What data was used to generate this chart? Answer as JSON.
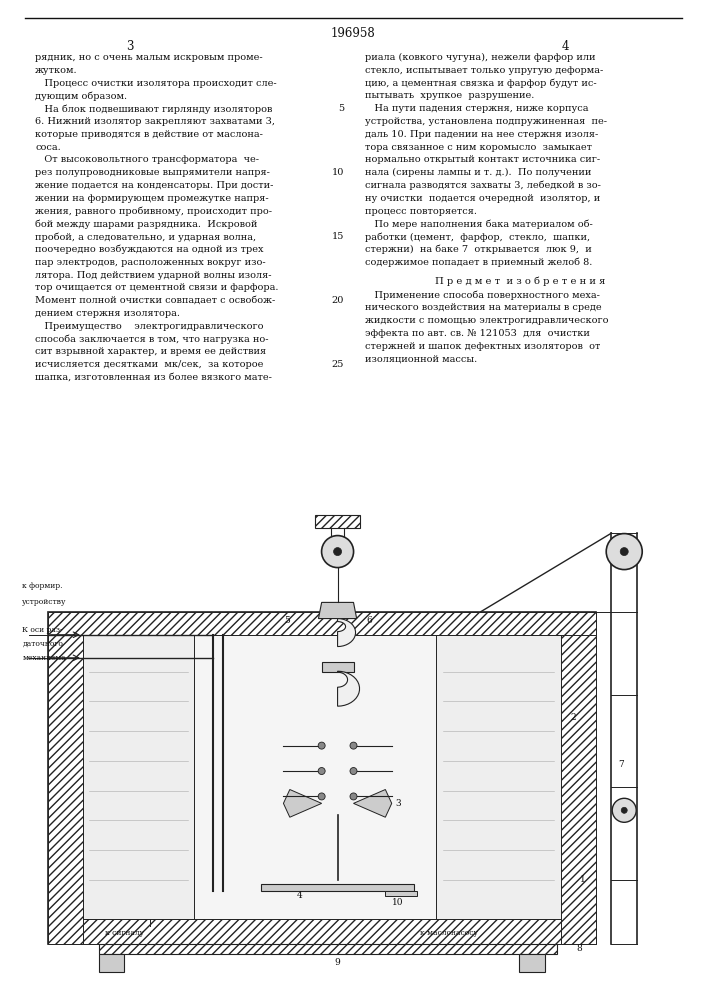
{
  "patent_number": "196958",
  "page_left": "3",
  "page_right": "4",
  "background_color": "#ffffff",
  "text_color": "#111111",
  "col1_text": [
    [
      "рядник, но с очень малым искровым проме-",
      null
    ],
    [
      "жутком.",
      null
    ],
    [
      "   Процесс очистки изолятора происходит сле-",
      null
    ],
    [
      "дующим образом.",
      null
    ],
    [
      "   На блок подвешивают гирлянду изоляторов",
      5
    ],
    [
      "6. Нижний изолятор закрепляют захватами 3,",
      null
    ],
    [
      "которые приводятся в действие от маслона-",
      null
    ],
    [
      "соса.",
      null
    ],
    [
      "   От высоковольтного трансформатора  че-",
      null
    ],
    [
      "рез полупроводниковые выпрямители напря-",
      10
    ],
    [
      "жение подается на конденсаторы. При дости-",
      null
    ],
    [
      "жении на формирующем промежутке напря-",
      null
    ],
    [
      "жения, равного пробивному, происходит про-",
      null
    ],
    [
      "бой между шарами разрядника.  Искровой",
      null
    ],
    [
      "пробой, а следовательно, и ударная волна,",
      15
    ],
    [
      "поочередно возбуждаются на одной из трех",
      null
    ],
    [
      "пар электродов, расположенных вокруг изо-",
      null
    ],
    [
      "лятора. Под действием ударной волны изоля-",
      null
    ],
    [
      "тор очищается от цементной связи и фарфора.",
      null
    ],
    [
      "Момент полной очистки совпадает с освобож-",
      20
    ],
    [
      "дением стержня изолятора.",
      null
    ],
    [
      "   Преимущество    электрогидравлического",
      null
    ],
    [
      "способа заключается в том, что нагрузка но-",
      null
    ],
    [
      "сит взрывной характер, и время ее действия",
      null
    ],
    [
      "исчисляется десятками  мк/сек,  за которое",
      25
    ],
    [
      "шапка, изготовленная из более вязкого мате-",
      null
    ]
  ],
  "col2_text": [
    "риала (ковкого чугуна), нежели фарфор или",
    "стекло, испытывает только упругую деформа-",
    "цию, а цементная связка и фарфор будут ис-",
    "пытывать  хрупкое  разрушение.",
    "   На пути падения стержня, ниже корпуса",
    "устройства, установлена подпружиненная  пе-",
    "даль 10. При падении на нее стержня изоля-",
    "тора связанное с ним коромысло  замыкает",
    "нормально открытый контакт источника сиг-",
    "нала (сирены лампы и т. д.).  По получении",
    "сигнала разводятся захваты 3, лебедкой в зо-",
    "ну очистки  подается очередной  изолятор, и",
    "процесс повторяется.",
    "   По мере наполнения бака материалом об-",
    "работки (цемент,  фарфор,  стекло,  шапки,",
    "стержни)  на баке 7  открывается  люк 9,  и",
    "содержимое попадает в приемный желоб 8."
  ],
  "subject_header": "П р е д м е т  и з о б р е т е н и я",
  "subject_text": [
    "   Применение способа поверхностного меха-",
    "нического воздействия на материалы в среде",
    "жидкости с помощью электрогидравлического",
    "эффекта по авт. св. № 121053  для  очистки",
    "стержней и шапок дефектных изоляторов  от",
    "изоляционной массы."
  ]
}
